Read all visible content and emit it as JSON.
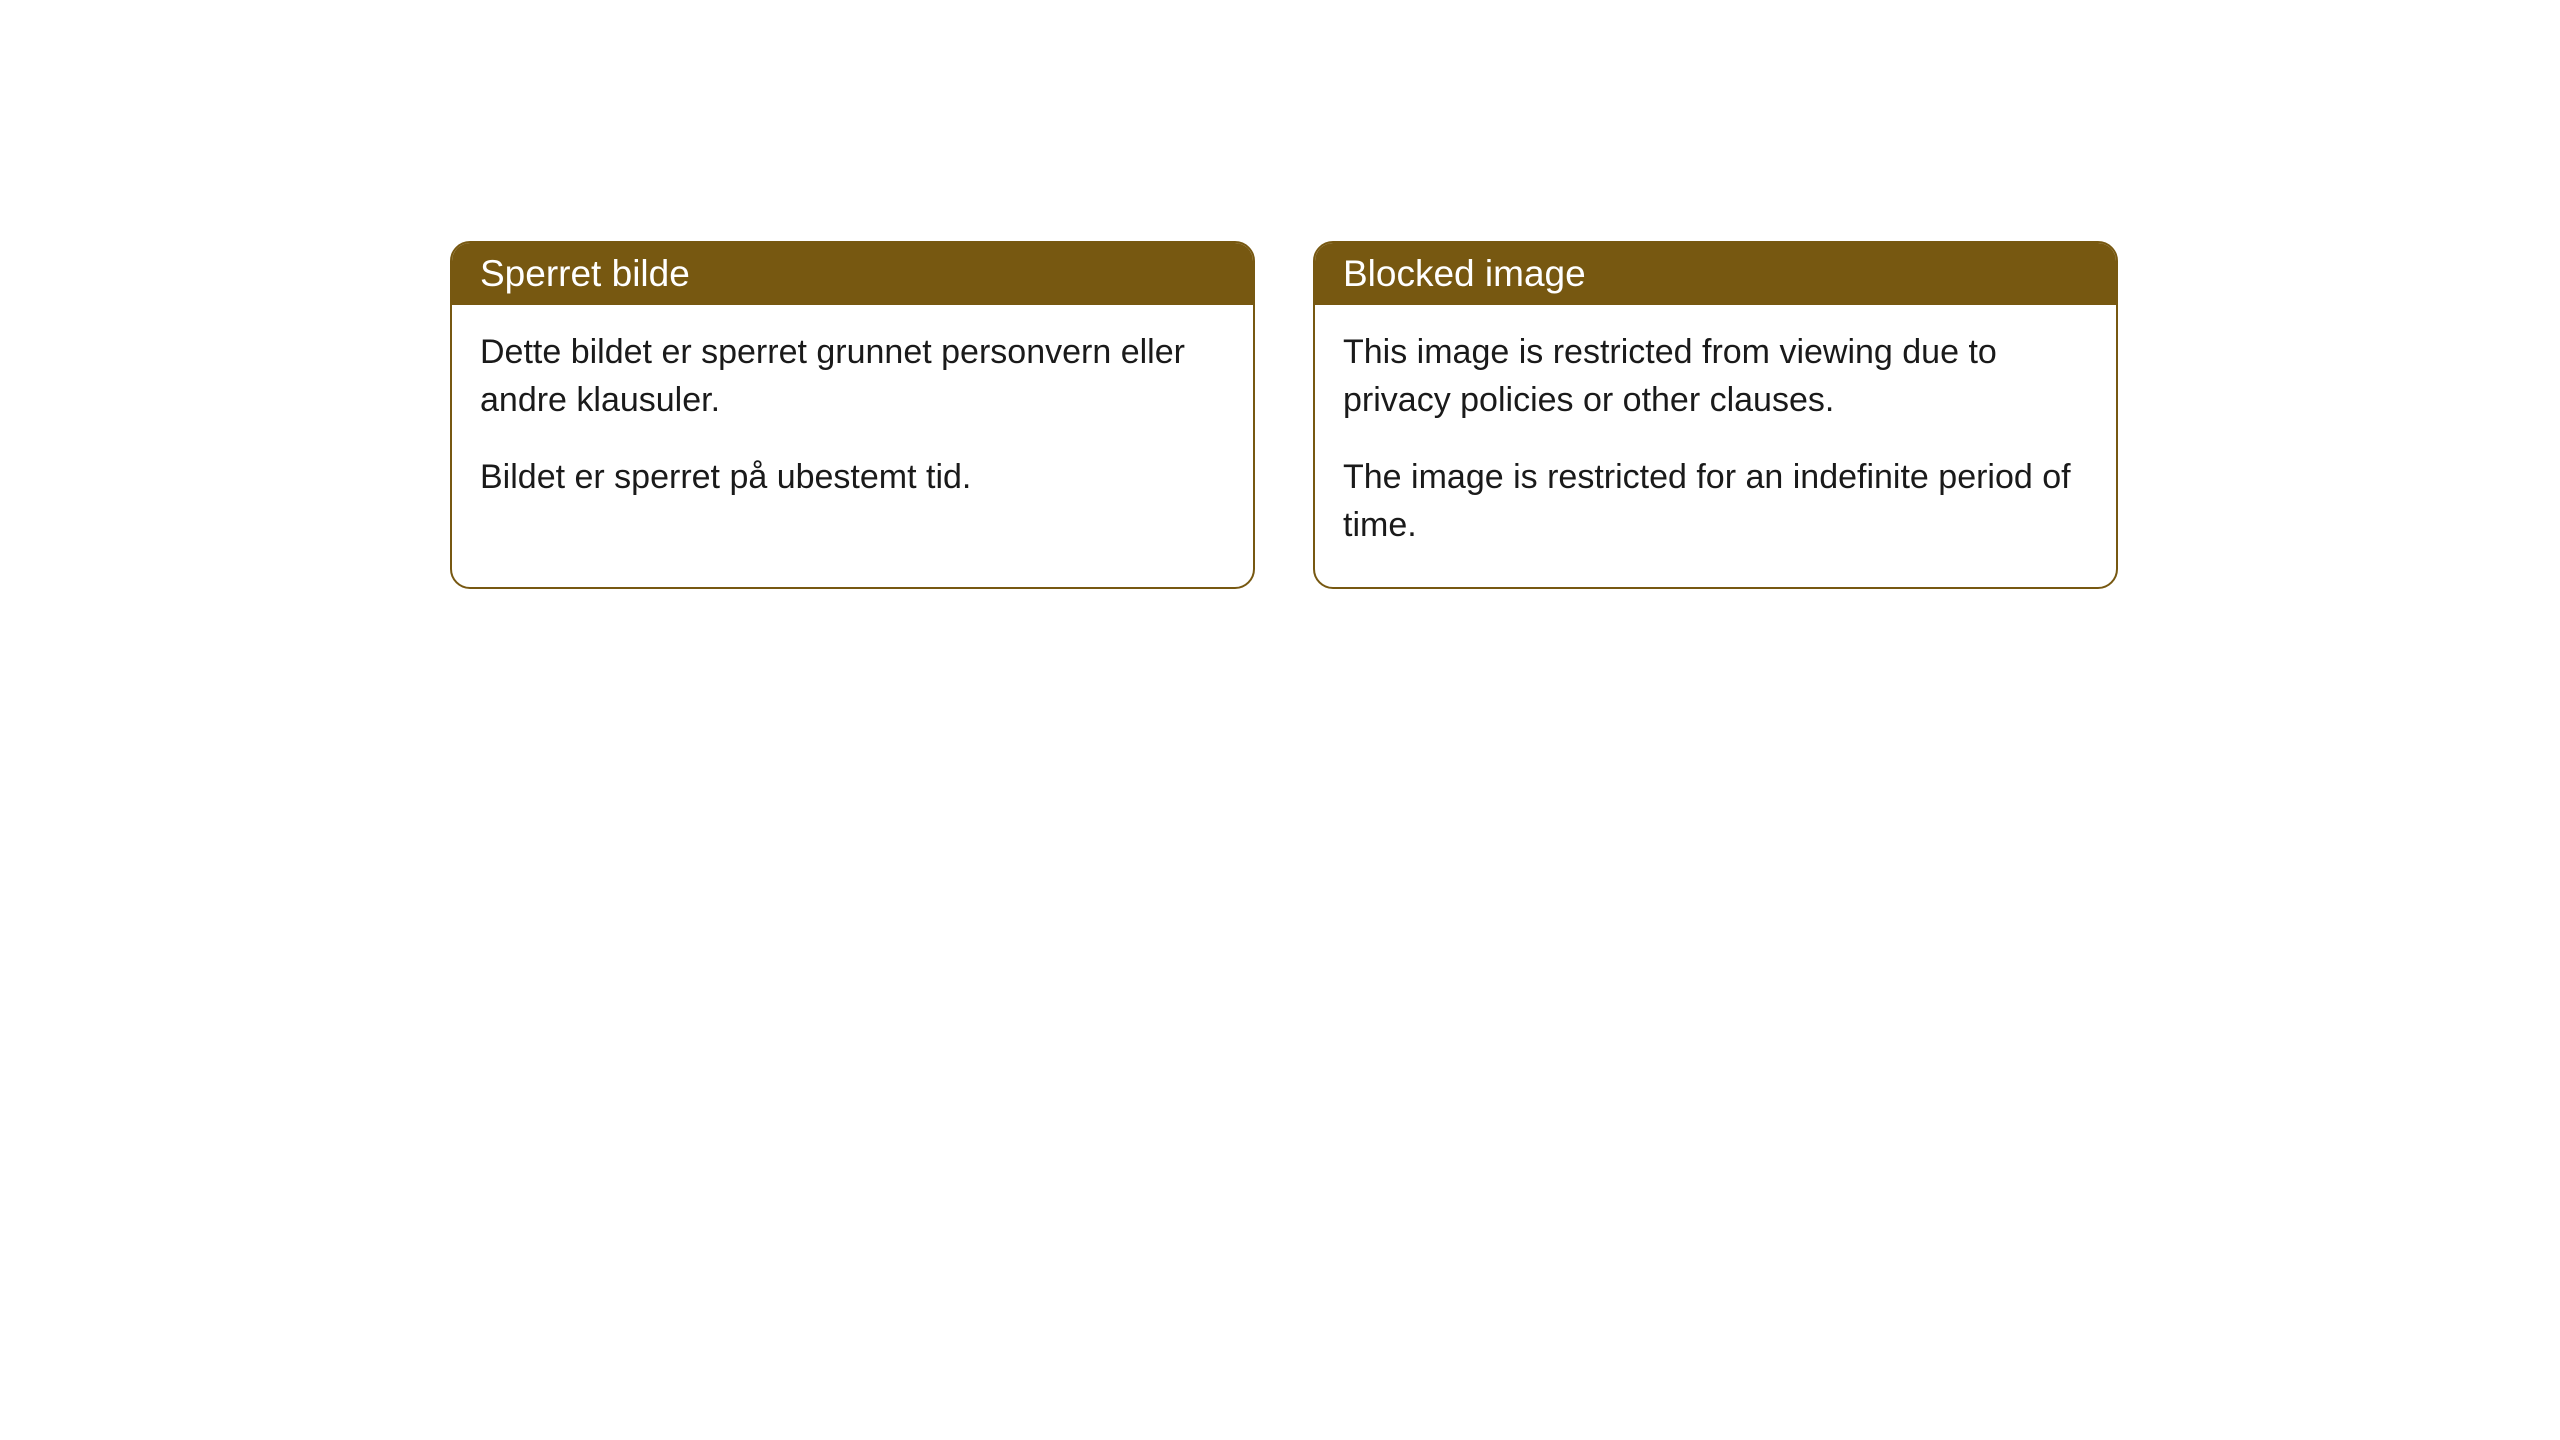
{
  "cards": [
    {
      "header": "Sperret bilde",
      "paragraph1": "Dette bildet er sperret grunnet personvern eller andre klausuler.",
      "paragraph2": "Bildet er sperret på ubestemt tid."
    },
    {
      "header": "Blocked image",
      "paragraph1": "This image is restricted from viewing due to privacy policies or other clauses.",
      "paragraph2": "The image is restricted for an indefinite period of time."
    }
  ],
  "style": {
    "header_bg": "#775811",
    "header_text_color": "#ffffff",
    "border_color": "#775811",
    "body_bg": "#ffffff",
    "body_text_color": "#1a1a1a",
    "border_radius": 20,
    "header_font_size": 37,
    "body_font_size": 34
  }
}
